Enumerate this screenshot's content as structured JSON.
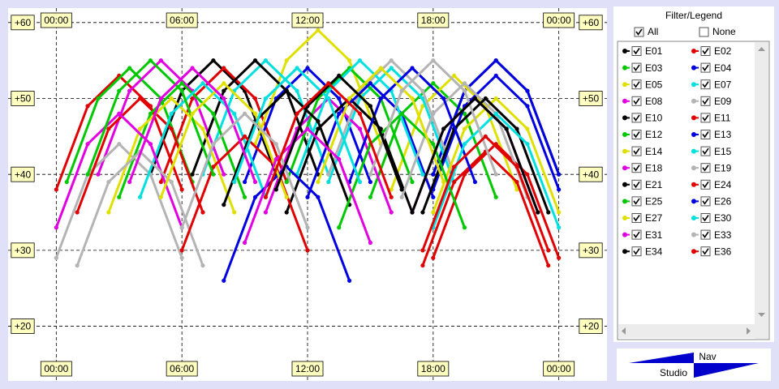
{
  "chart_data": {
    "type": "line",
    "xlim": [
      -2.3,
      26.3
    ],
    "ylim": [
      12.8,
      61.9
    ],
    "xticks": [
      {
        "value": 0,
        "label": "00:00"
      },
      {
        "value": 6,
        "label": "06:00"
      },
      {
        "value": 12,
        "label": "12:00"
      },
      {
        "value": 18,
        "label": "18:00"
      },
      {
        "value": 24,
        "label": "00:00"
      }
    ],
    "yticks": [
      {
        "value": 60,
        "label": "+60"
      },
      {
        "value": 50,
        "label": "+50"
      },
      {
        "value": 40,
        "label": "+40"
      },
      {
        "value": 30,
        "label": "+30"
      },
      {
        "value": 20,
        "label": "+20"
      }
    ],
    "grid": true,
    "series": [
      {
        "name": "E01",
        "color": "#000000",
        "checked": true,
        "x": [
          4.5,
          6,
          7.5,
          9,
          10.5,
          null,
          18,
          19.5,
          21,
          22.5,
          24
        ],
        "values": [
          40,
          51,
          55,
          51,
          40,
          null,
          40,
          51,
          55,
          51,
          40
        ]
      },
      {
        "name": "E02",
        "color": "#e00000",
        "checked": true,
        "x": [
          0,
          1.5,
          3,
          4.5,
          6,
          null,
          5,
          6.5,
          8,
          9.5,
          11
        ],
        "values": [
          38,
          49,
          53,
          49,
          38,
          null,
          39,
          50,
          54,
          50,
          39
        ]
      },
      {
        "name": "E03",
        "color": "#00c800",
        "checked": true,
        "x": [
          0.5,
          2,
          3.5,
          5,
          6.5,
          null,
          15,
          16.5,
          18,
          19.5,
          21
        ],
        "values": [
          39,
          50,
          54,
          50,
          39,
          null,
          37,
          48,
          52,
          48,
          37
        ]
      },
      {
        "name": "E04",
        "color": "#0000e0",
        "checked": true,
        "x": [
          9,
          10.5,
          12,
          13.5,
          15,
          null,
          18,
          19.5,
          21,
          22.5,
          24
        ],
        "values": [
          39,
          50,
          54,
          50,
          39,
          null,
          40,
          51,
          55,
          51,
          40
        ]
      },
      {
        "name": "E05",
        "color": "#e0e000",
        "checked": true,
        "x": [
          9.5,
          11,
          12.5,
          14,
          15.5,
          null,
          16,
          17.5,
          19,
          20.5,
          22
        ],
        "values": [
          44,
          55,
          59,
          55,
          44,
          null,
          38,
          49,
          53,
          49,
          38
        ]
      },
      {
        "name": "E07",
        "color": "#00e0e0",
        "checked": true,
        "x": [
          7,
          8.5,
          10,
          11.5,
          13,
          null,
          13,
          14.5,
          16,
          17.5,
          19
        ],
        "values": [
          40,
          51,
          55,
          51,
          40,
          null,
          39,
          50,
          54,
          50,
          39
        ]
      },
      {
        "name": "E08",
        "color": "#e000e0",
        "checked": true,
        "x": [
          2,
          3.5,
          5,
          6.5,
          8,
          null,
          10,
          11.5,
          13,
          14.5,
          16
        ],
        "values": [
          40,
          51,
          55,
          51,
          40,
          null,
          35,
          46,
          50,
          46,
          35
        ]
      },
      {
        "name": "E09",
        "color": "#b4b4b4",
        "checked": true,
        "x": [
          0,
          1.5,
          3,
          4.5,
          6,
          null,
          13,
          14.5,
          16,
          17.5,
          19
        ],
        "values": [
          29,
          40,
          44,
          40,
          29,
          null,
          40,
          51,
          55,
          51,
          40
        ]
      },
      {
        "name": "E10",
        "color": "#000000",
        "checked": true,
        "x": [
          6.5,
          8,
          9.5,
          11,
          12.5,
          null,
          11,
          12.5,
          14,
          15.5,
          17
        ],
        "values": [
          40,
          51,
          55,
          51,
          40,
          null,
          35,
          46,
          50,
          46,
          35
        ]
      },
      {
        "name": "E11",
        "color": "#e00000",
        "checked": true,
        "x": [
          1,
          2.5,
          4,
          5.5,
          7,
          null,
          18,
          19.5,
          21,
          22.5,
          24
        ],
        "values": [
          35,
          46,
          50,
          46,
          35,
          null,
          29,
          40,
          44,
          40,
          29
        ]
      },
      {
        "name": "E12",
        "color": "#00c800",
        "checked": true,
        "x": [
          3,
          4.5,
          6,
          7.5,
          9,
          null,
          11,
          12.5,
          14,
          15.5,
          17
        ],
        "values": [
          37,
          48,
          52,
          48,
          37,
          null,
          39,
          50,
          54,
          50,
          39
        ]
      },
      {
        "name": "E13",
        "color": "#0000e0",
        "checked": true,
        "x": [
          12,
          13.5,
          15,
          16.5,
          18,
          null,
          18,
          19.5,
          21,
          22.5,
          24
        ],
        "values": [
          37,
          48,
          52,
          48,
          37,
          null,
          38,
          49,
          53,
          49,
          38
        ]
      },
      {
        "name": "E14",
        "color": "#e0e000",
        "checked": true,
        "x": [
          2.5,
          4,
          5.5,
          7,
          8.5,
          null,
          18,
          19.5,
          21,
          22.5,
          24
        ],
        "values": [
          35,
          46,
          50,
          46,
          35,
          null,
          35,
          46,
          50,
          46,
          35
        ]
      },
      {
        "name": "E15",
        "color": "#00e0e0",
        "checked": true,
        "x": [
          4,
          5.5,
          7,
          8.5,
          10,
          null,
          11.5,
          13,
          14.5,
          16,
          17.5
        ],
        "values": [
          37,
          48,
          52,
          48,
          37,
          null,
          40,
          51,
          55,
          51,
          40
        ]
      },
      {
        "name": "E18",
        "color": "#e000e0",
        "checked": true,
        "x": [
          0,
          1.5,
          3,
          4.5,
          6,
          null,
          17,
          18.5,
          20,
          21.5,
          23
        ],
        "values": [
          33,
          44,
          48,
          44,
          33,
          null,
          35,
          46,
          50,
          46,
          35
        ]
      },
      {
        "name": "E19",
        "color": "#b4b4b4",
        "checked": true,
        "x": [
          1,
          2.5,
          4,
          5.5,
          7,
          null,
          16.5,
          18,
          19.5,
          21,
          22.5
        ],
        "values": [
          28,
          39,
          43,
          39,
          28,
          null,
          37,
          48,
          52,
          48,
          37
        ]
      },
      {
        "name": "E21",
        "color": "#000000",
        "checked": true,
        "x": [
          8,
          9.5,
          11,
          12.5,
          14,
          null,
          17.5,
          19,
          20.5,
          22,
          23.5
        ],
        "values": [
          36,
          47,
          51,
          47,
          36,
          null,
          35,
          46,
          50,
          46,
          35
        ]
      },
      {
        "name": "E24",
        "color": "#e00000",
        "checked": true,
        "x": [
          6,
          7.5,
          9,
          10.5,
          12,
          null,
          17.5,
          19,
          20.5,
          22,
          23.5
        ],
        "values": [
          30,
          41,
          45,
          41,
          30,
          null,
          28,
          39,
          43,
          39,
          28
        ]
      },
      {
        "name": "E25",
        "color": "#00c800",
        "checked": true,
        "x": [
          1.5,
          3,
          4.5,
          6,
          7.5,
          null,
          13.5,
          15,
          16.5,
          18,
          19.5
        ],
        "values": [
          40,
          51,
          55,
          51,
          40,
          null,
          33,
          44,
          48,
          44,
          33
        ]
      },
      {
        "name": "E26",
        "color": "#0000e0",
        "checked": true,
        "x": [
          8,
          9.5,
          11,
          12.5,
          14,
          null,
          14,
          15.5,
          17,
          18.5,
          20
        ],
        "values": [
          26,
          37,
          41,
          37,
          26,
          null,
          39,
          50,
          54,
          50,
          39
        ]
      },
      {
        "name": "E27",
        "color": "#e0e000",
        "checked": true,
        "x": [
          5,
          6.5,
          8,
          9.5,
          11,
          null,
          12.5,
          14,
          15.5,
          17,
          18.5
        ],
        "values": [
          37,
          48,
          52,
          48,
          37,
          null,
          39,
          50,
          54,
          50,
          39
        ]
      },
      {
        "name": "E30",
        "color": "#00e0e0",
        "checked": true,
        "x": [
          8.5,
          10,
          11.5,
          13,
          14.5,
          null,
          18,
          19.5,
          21,
          22.5,
          24
        ],
        "values": [
          39,
          50,
          54,
          50,
          39,
          null,
          33,
          44,
          48,
          44,
          33
        ]
      },
      {
        "name": "E31",
        "color": "#e000e0",
        "checked": true,
        "x": [
          3.5,
          5,
          6.5,
          8,
          9.5,
          null,
          9,
          10.5,
          12,
          13.5,
          15
        ],
        "values": [
          39,
          50,
          54,
          50,
          39,
          null,
          31,
          42,
          46,
          42,
          31
        ]
      },
      {
        "name": "E33",
        "color": "#b4b4b4",
        "checked": true,
        "x": [
          6,
          7.5,
          9,
          10.5,
          12,
          null,
          15,
          16.5,
          18,
          19.5,
          21
        ],
        "values": [
          33,
          44,
          48,
          44,
          33,
          null,
          40,
          51,
          55,
          51,
          40
        ]
      },
      {
        "name": "E34",
        "color": "#000000",
        "checked": true,
        "x": [
          10.5,
          12,
          13.5,
          15,
          16.5,
          null,
          17,
          18.5,
          20,
          21.5,
          23
        ],
        "values": [
          38,
          49,
          53,
          49,
          38,
          null,
          35,
          46,
          50,
          46,
          35
        ]
      },
      {
        "name": "E36",
        "color": "#e00000",
        "checked": true,
        "x": [
          10,
          11.5,
          13,
          14.5,
          16,
          null,
          17.5,
          19,
          20.5,
          22,
          23.5
        ],
        "values": [
          37,
          48,
          52,
          48,
          37,
          null,
          30,
          41,
          45,
          41,
          30
        ]
      }
    ]
  },
  "legend_panel": {
    "title": "Filter/Legend",
    "all_label": "All",
    "all_checked": true,
    "none_label": "None",
    "none_checked": false
  },
  "logo": {
    "top": "Nav",
    "bottom": "Studio"
  }
}
